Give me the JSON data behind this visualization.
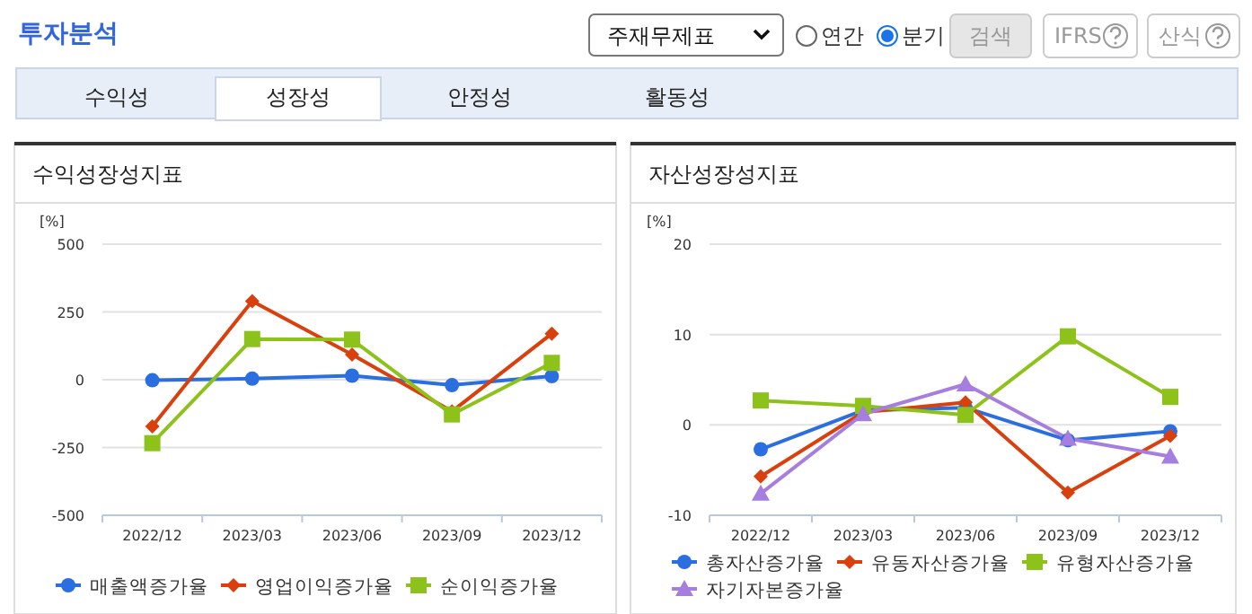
{
  "chart_data": [
    {
      "type": "other",
      "title": "투자분석",
      "annotations": [
        "주재무제표",
        "연간",
        "분기",
        "검색",
        "IFRS",
        "산식",
        "수익성",
        "성장성",
        "안정성",
        "활동성"
      ]
    },
    {
      "type": "line",
      "title": "수익성장성지표",
      "ylabel": "[%]",
      "categories": [
        "2022/12",
        "2023/03",
        "2023/06",
        "2023/09",
        "2023/12"
      ],
      "ylim": [
        -500,
        500
      ],
      "yticks": [
        -500,
        -250,
        0,
        250,
        500
      ],
      "grid": "y",
      "legend": "bottom",
      "series": [
        {
          "name": "매출액증가율",
          "color": "#2a6ee0",
          "marker": "circle",
          "values": [
            -2,
            4,
            15,
            -20,
            13
          ]
        },
        {
          "name": "영업이익증가율",
          "color": "#d9400d",
          "marker": "diamond",
          "values": [
            -172,
            290,
            93,
            -117,
            170
          ]
        },
        {
          "name": "순이익증가율",
          "color": "#8cc21a",
          "marker": "square",
          "values": [
            -234,
            150,
            148,
            -128,
            62
          ]
        }
      ]
    },
    {
      "type": "line",
      "title": "자산성장성지표",
      "ylabel": "[%]",
      "categories": [
        "2022/12",
        "2023/03",
        "2023/06",
        "2023/09",
        "2023/12"
      ],
      "ylim": [
        -10,
        20
      ],
      "yticks": [
        -10,
        0,
        10,
        20
      ],
      "grid": "y",
      "legend": "bottom",
      "series": [
        {
          "name": "총자산증가율",
          "color": "#2a6ee0",
          "marker": "circle",
          "values": [
            -2.7,
            1.6,
            1.9,
            -1.7,
            -0.7
          ]
        },
        {
          "name": "유동자산증가율",
          "color": "#d9400d",
          "marker": "diamond",
          "values": [
            -5.7,
            1.4,
            2.5,
            -7.5,
            -1.2
          ]
        },
        {
          "name": "유형자산증가율",
          "color": "#8cc21a",
          "marker": "square",
          "values": [
            2.7,
            2.1,
            1.1,
            9.8,
            3.1
          ]
        },
        {
          "name": "자기자본증가율",
          "color": "#a57ee0",
          "marker": "triangle",
          "values": [
            -7.6,
            1.2,
            4.5,
            -1.5,
            -3.5
          ]
        }
      ]
    }
  ]
}
